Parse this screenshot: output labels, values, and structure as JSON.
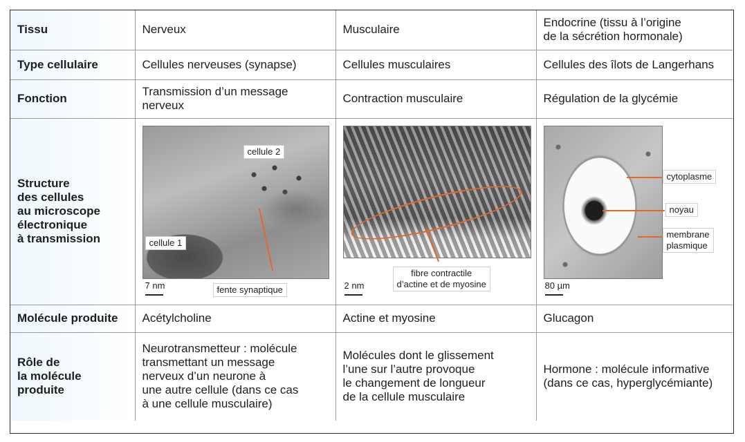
{
  "rows": {
    "tissu": {
      "header": "Tissu",
      "nerveux": "Nerveux",
      "musculaire": "Musculaire",
      "endocrine_l1": "Endocrine (tissu à l’origine",
      "endocrine_l2": "de la sécrétion hormonale)"
    },
    "type": {
      "header": "Type cellulaire",
      "nerveux": "Cellules nerveuses (synapse)",
      "musculaire": "Cellules musculaires",
      "endocrine": "Cellules des îlots de Langerhans"
    },
    "fonction": {
      "header": "Fonction",
      "nerveux_l1": "Transmission d’un message",
      "nerveux_l2": "nerveux",
      "musculaire": "Contraction musculaire",
      "endocrine": "Régulation de la glycémie"
    },
    "structure": {
      "header_lines": [
        "Structure",
        "des cellules",
        "au microscope",
        "électronique",
        "à transmission"
      ],
      "nerveux": {
        "cell2": "cellule 2",
        "cell1": "cellule 1",
        "scale": "7 nm",
        "fente": "fente synaptique"
      },
      "musculaire": {
        "scale": "2 nm",
        "fibre_l1": "fibre contractile",
        "fibre_l2": "d’actine et de myosine"
      },
      "endocrine": {
        "scale": "80 µm",
        "cytoplasme": "cytoplasme",
        "noyau": "noyau",
        "membrane_l1": "membrane",
        "membrane_l2": "plasmique"
      }
    },
    "molecule": {
      "header": "Molécule produite",
      "nerveux": "Acétylcholine",
      "musculaire": "Actine et myosine",
      "endocrine": "Glucagon"
    },
    "role": {
      "header_lines": [
        "Rôle de",
        "la molécule",
        "produite"
      ],
      "nerveux_lines": [
        "Neurotransmetteur : molécule",
        "transmettant un message",
        "nerveux d’un neurone à",
        "une autre cellule (dans ce cas",
        "à une cellule musculaire)"
      ],
      "musculaire_lines": [
        "Molécules dont le glissement",
        "l’une sur l’autre provoque",
        "le changement de longueur",
        "de la cellule musculaire"
      ],
      "endocrine_lines": [
        "Hormone : molécule informative",
        "(dans ce cas, hyperglycémiante)"
      ]
    }
  },
  "colors": {
    "header_text": "#29a8d6",
    "accent_pointer": "#e06a2c",
    "border": "#9a9a9a"
  }
}
